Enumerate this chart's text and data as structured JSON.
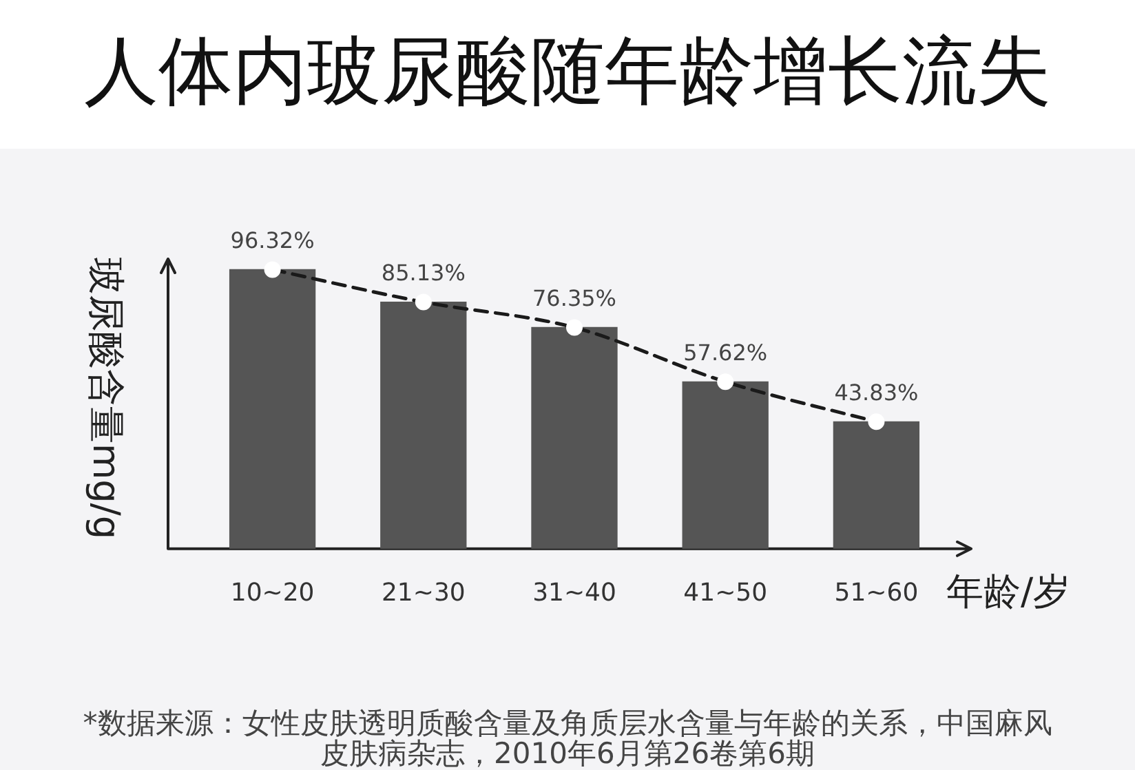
{
  "chart_data": {
    "type": "bar",
    "title": "人体内玻尿酸随年龄增长流失",
    "categories": [
      "10~20",
      "21~30",
      "31~40",
      "41~50",
      "51~60"
    ],
    "xlabel": "年龄/岁",
    "ylabel": "玻尿酸含量mg/g",
    "series": [
      {
        "color": "#555555",
        "values": [
          96.32,
          85.13,
          76.35,
          57.62,
          43.83
        ],
        "value_labels": [
          "96.32%",
          "85.13%",
          "76.35%",
          "57.62%",
          "43.83%"
        ]
      },
      {
        "type": "line",
        "color": "#1a1a1a",
        "values": [
          96.32,
          85.13,
          76.35,
          57.62,
          43.83
        ],
        "line_style": "dashed",
        "marker": "circle"
      }
    ],
    "tick_labels": "x",
    "annotations": [
      "*数据来源：女性皮肤透明质酸含量及角质层水含量与年龄的关系，中国麻风皮肤病杂志，2010年6月第26卷第6期"
    ]
  }
}
